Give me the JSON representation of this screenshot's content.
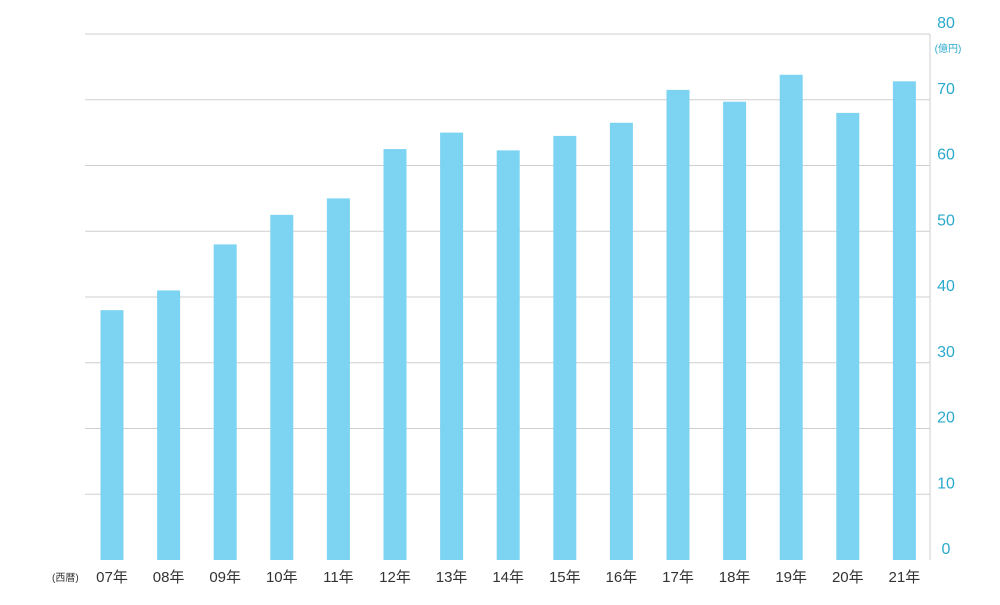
{
  "chart_data": {
    "type": "bar",
    "categories": [
      "07年",
      "08年",
      "09年",
      "10年",
      "11年",
      "12年",
      "13年",
      "14年",
      "15年",
      "16年",
      "17年",
      "18年",
      "19年",
      "20年",
      "21年"
    ],
    "values": [
      38.0,
      41.0,
      48.0,
      52.5,
      55.0,
      62.5,
      65.0,
      62.3,
      64.5,
      66.5,
      71.5,
      69.7,
      73.8,
      68.0,
      72.8
    ],
    "ylim": [
      0,
      80
    ],
    "yticks": [
      0,
      10,
      20,
      30,
      40,
      50,
      60,
      70,
      80
    ],
    "y_unit": "(億円)",
    "x_unit": "(西暦)",
    "grid": true,
    "y_axis_side": "right",
    "bar_color": "#7dd3f2",
    "tick_color_y": "#2aa9cc",
    "tick_color_x": "#333333",
    "grid_color": "#cfcfcf"
  }
}
